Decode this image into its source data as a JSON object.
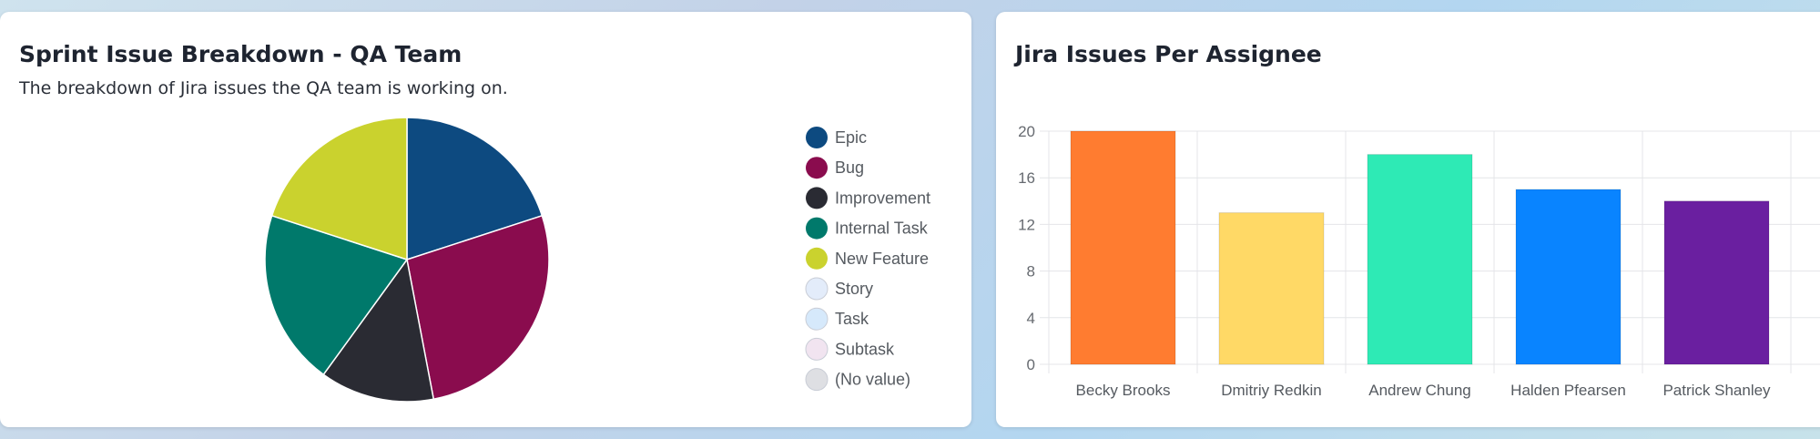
{
  "pie_card": {
    "title": "Sprint Issue Breakdown - QA Team",
    "subtitle": "The breakdown of Jira issues the QA team is working on."
  },
  "bar_card": {
    "title": "Jira Issues Per Assignee"
  },
  "chart_data": [
    {
      "type": "pie",
      "title": "Sprint Issue Breakdown - QA Team",
      "subtitle": "The breakdown of Jira issues the QA team is working on.",
      "legend_position": "right",
      "slices": [
        {
          "label": "Epic",
          "value": 20,
          "color": "#0d4a80"
        },
        {
          "label": "Bug",
          "value": 27,
          "color": "#8a0c4e"
        },
        {
          "label": "Improvement",
          "value": 13,
          "color": "#2a2b33"
        },
        {
          "label": "Internal Task",
          "value": 20,
          "color": "#00796b"
        },
        {
          "label": "New Feature",
          "value": 20,
          "color": "#cad22e"
        },
        {
          "label": "Story",
          "value": 0,
          "color": "#e3ecfa"
        },
        {
          "label": "Task",
          "value": 0,
          "color": "#d6e9fb"
        },
        {
          "label": "Subtask",
          "value": 0,
          "color": "#f1e4f0"
        },
        {
          "label": "(No value)",
          "value": 0,
          "color": "#dedfe3"
        }
      ]
    },
    {
      "type": "bar",
      "title": "Jira Issues Per Assignee",
      "categories": [
        "Becky Brooks",
        "Dmitriy Redkin",
        "Andrew Chung",
        "Halden Pfearsen",
        "Patrick Shanley"
      ],
      "values": [
        20,
        13,
        18,
        15,
        14
      ],
      "colors": [
        "#ff7c30",
        "#ffd966",
        "#2eeab5",
        "#0984ff",
        "#6a1fa0"
      ],
      "ylim": [
        0,
        20
      ],
      "yticks": [
        0,
        4,
        8,
        12,
        16,
        20
      ],
      "xlabel": "",
      "ylabel": "",
      "grid": true
    }
  ]
}
